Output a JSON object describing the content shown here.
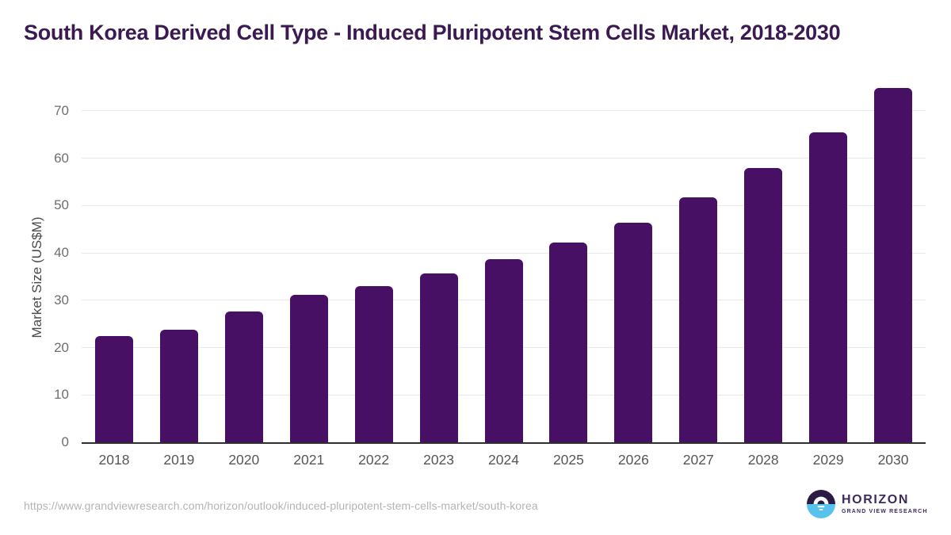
{
  "title": "South Korea Derived Cell Type - Induced Pluripotent Stem Cells Market, 2018-2030",
  "chart_data": {
    "type": "bar",
    "title": "South Korea Derived Cell Type - Induced Pluripotent Stem Cells Market, 2018-2030",
    "categories": [
      "2018",
      "2019",
      "2020",
      "2021",
      "2022",
      "2023",
      "2024",
      "2025",
      "2026",
      "2027",
      "2028",
      "2029",
      "2030"
    ],
    "values": [
      22.4,
      23.7,
      27.7,
      31.1,
      33.0,
      35.6,
      38.6,
      42.2,
      46.4,
      51.7,
      58.0,
      65.4,
      74.8
    ],
    "xlabel": "",
    "ylabel": "Market Size (US$M)",
    "ylim": [
      0,
      77.5
    ],
    "yticks": [
      0,
      10,
      20,
      30,
      40,
      50,
      60,
      70
    ],
    "grid": true,
    "legend": "none",
    "bar_color": "#471064"
  },
  "colors": {
    "title_text": "#3b1a52",
    "bar_fill": "#471064",
    "gridline": "#e8e8e8",
    "axis_line": "#2f2f2f",
    "tick_text": "#6e6e6e",
    "url_text": "#b4b4b4",
    "logo_purple": "#3d2a5e",
    "logo_dark_half": "#2c1b45",
    "logo_blue_half": "#57c2ec"
  },
  "footer": {
    "source_url": "https://www.grandviewresearch.com/horizon/outlook/induced-pluripotent-stem-cells-market/south-korea",
    "logo": {
      "brand": "HORIZON",
      "sub_brand": "GRAND VIEW RESEARCH"
    }
  }
}
